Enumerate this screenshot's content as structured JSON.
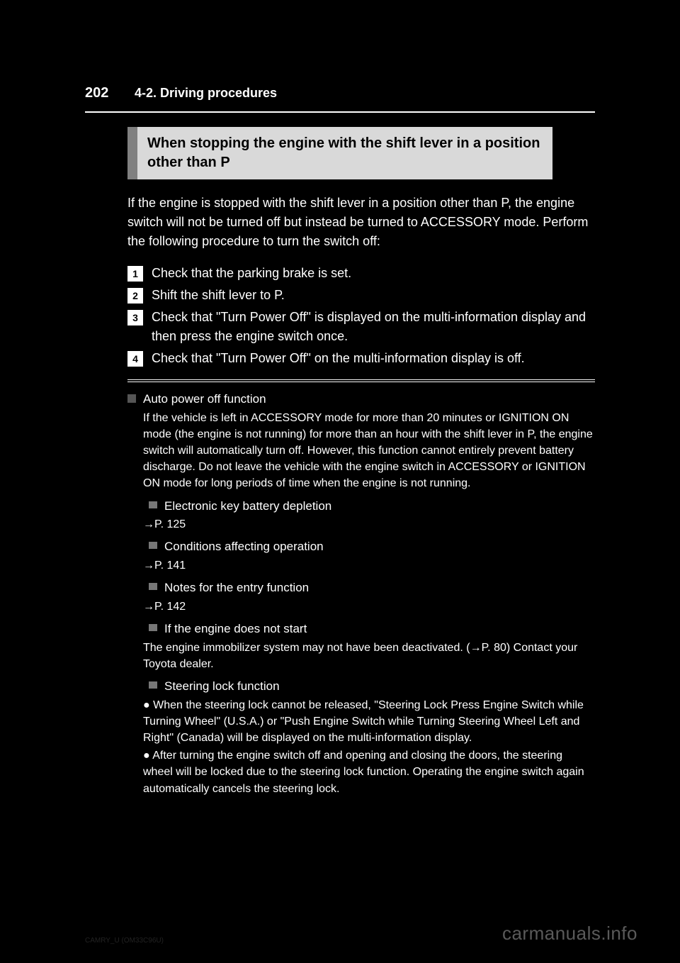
{
  "header": {
    "page_number": "202",
    "chapter": "4-2. Driving procedures"
  },
  "section": {
    "title": "When stopping the engine with the shift lever in a position other than P"
  },
  "intro": [
    "If the engine is stopped with the shift lever in a position other than P, the engine switch will not be turned off but instead be turned to ACCESSORY mode. Perform the following procedure to turn the switch off:"
  ],
  "steps": [
    {
      "n": "1",
      "text": "Check that the parking brake is set."
    },
    {
      "n": "2",
      "text": "Shift the shift lever to P."
    },
    {
      "n": "3",
      "text": "Check that \"Turn Power Off\" is displayed on the multi-information display and then press the engine switch once."
    },
    {
      "n": "4",
      "text": "Check that \"Turn Power Off\" on the multi-information display is off."
    }
  ],
  "subsections": [
    {
      "title": "Auto power off function",
      "body": [
        "If the vehicle is left in ACCESSORY mode for more than 20 minutes or IGNITION ON mode (the engine is not running) for more than an hour with the shift lever in P, the engine switch will automatically turn off. However, this function cannot entirely prevent battery discharge. Do not leave the vehicle with the engine switch in ACCESSORY or IGNITION ON mode for long periods of time when the engine is not running."
      ],
      "nested": [
        {
          "title": "Electronic key battery depletion",
          "ref": "→P. 125"
        },
        {
          "title": "Conditions affecting operation",
          "ref": "→P. 141"
        },
        {
          "title": "Notes for the entry function",
          "ref": "→P. 142"
        },
        {
          "title": "If the engine does not start",
          "body": "The engine immobilizer system may not have been deactivated. (→P. 80) Contact your Toyota dealer."
        },
        {
          "title": "Steering lock function",
          "bullets": [
            "When the steering lock cannot be released, \"Steering Lock Press Engine Switch while Turning Wheel\" (U.S.A.) or \"Push Engine Switch while Turning Steering Wheel Left and Right\" (Canada) will be displayed on the multi-information display.",
            "After turning the engine switch off and opening and closing the doors, the steering wheel will be locked due to the steering lock function. Operating the engine switch again automatically cancels the steering lock."
          ]
        }
      ]
    }
  ],
  "footer": {
    "doc_id": "CAMRY_U (OM33C96U)",
    "watermark": "carmanuals.info"
  },
  "colors": {
    "bg": "#000000",
    "text": "#ffffff",
    "header_bg": "#d9d9d9",
    "header_bar": "#808080",
    "bullet": "#808080",
    "watermark": "#5a5a5a"
  },
  "typography": {
    "body_pt": 18,
    "small_pt": 16,
    "header_pt": 20,
    "pagenum_pt": 20
  }
}
